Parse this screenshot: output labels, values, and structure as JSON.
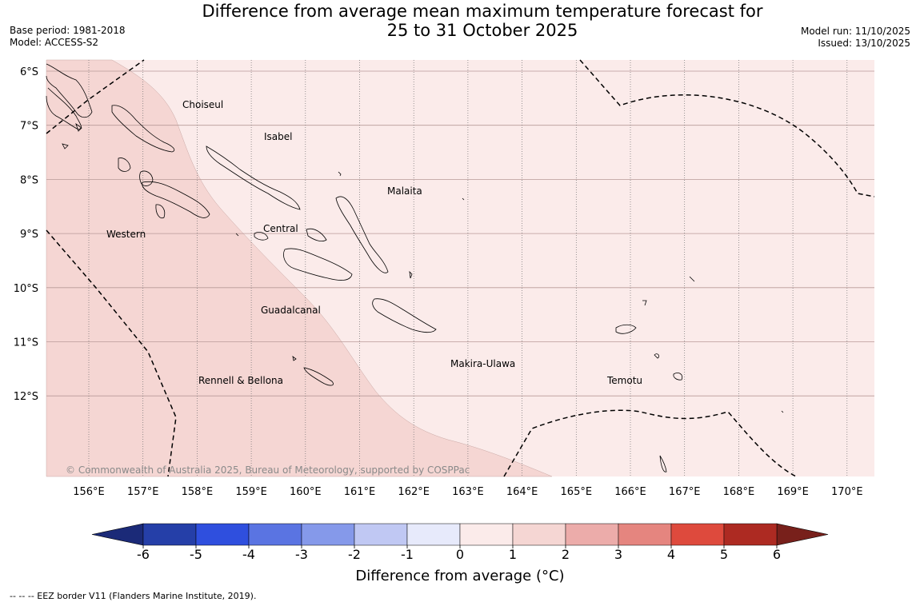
{
  "header": {
    "title_line1": "Difference from average mean maximum temperature forecast for",
    "title_line2": "25 to 31 October 2025",
    "base_period": "Base period: 1981-2018",
    "model": "Model: ACCESS-S2",
    "model_run": "Model run: 11/10/2025",
    "issued": "Issued: 13/10/2025"
  },
  "map": {
    "lat_labels": [
      "6°S",
      "7°S",
      "8°S",
      "9°S",
      "10°S",
      "11°S",
      "12°S"
    ],
    "lon_labels": [
      "156°E",
      "157°E",
      "158°E",
      "159°E",
      "160°E",
      "161°E",
      "162°E",
      "163°E",
      "164°E",
      "165°E",
      "166°E",
      "167°E",
      "168°E",
      "169°E",
      "170°E"
    ],
    "regions": [
      "Choiseul",
      "Isabel",
      "Malaita",
      "Western",
      "Central",
      "Guadalcanal",
      "Makira-Ulawa",
      "Rennell & Bellona",
      "Temotu"
    ],
    "copyright": "© Commonwealth of Australia 2025, Bureau of Meteorology, supported by COSPPac",
    "anomaly_zones": [
      {
        "range": "1 to 2 °C",
        "color": "#f5d6d3"
      },
      {
        "range": "0 to 1 °C",
        "color": "#fbebea"
      }
    ]
  },
  "colorbar": {
    "ticks": [
      "-6",
      "-5",
      "-4",
      "-3",
      "-2",
      "-1",
      "0",
      "1",
      "2",
      "3",
      "4",
      "5",
      "6"
    ],
    "colors": [
      "#253fa8",
      "#2f4fde",
      "#5a74e2",
      "#8599ea",
      "#c0c8f3",
      "#e7eafb",
      "#fbebea",
      "#f5d6d3",
      "#ecacaa",
      "#e5857f",
      "#de4a3d",
      "#ad2a22"
    ],
    "low_color": "#1b2a78",
    "high_color": "#78201b",
    "label": "Difference from average (°C)"
  },
  "footnote": "--  --  -- EEZ border V11 (Flanders Marine Institute, 2019)."
}
